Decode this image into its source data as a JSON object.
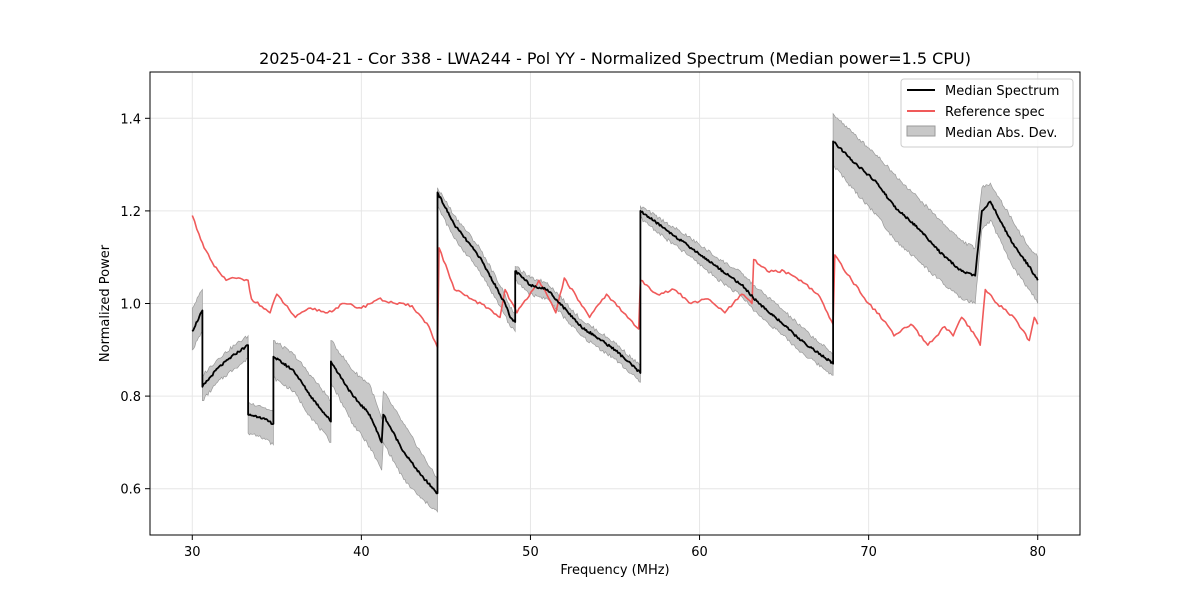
{
  "chart_data": {
    "type": "line",
    "title": "2025-04-21 - Cor 338 - LWA244 - Pol YY - Normalized Spectrum (Median power=1.5 CPU)",
    "xlabel": "Frequency (MHz)",
    "ylabel": "Normalized Power",
    "xlim": [
      27.5,
      82.5
    ],
    "ylim": [
      0.5,
      1.5
    ],
    "xticks": [
      30,
      40,
      50,
      60,
      70,
      80
    ],
    "yticks": [
      0.6,
      0.8,
      1.0,
      1.2,
      1.4
    ],
    "xtick_labels": [
      "30",
      "40",
      "50",
      "60",
      "70",
      "80"
    ],
    "ytick_labels": [
      "0.6",
      "0.8",
      "1.0",
      "1.2",
      "1.4"
    ],
    "grid": true,
    "legend_position": "top-right",
    "legend": [
      "Median Spectrum",
      "Reference spec",
      "Median Abs. Dev."
    ],
    "colors": {
      "median": "#000000",
      "reference": "#f05a5a",
      "mad_fill": "#c8c8c8",
      "mad_edge": "#9a9a9a"
    },
    "series": [
      {
        "name": "Median Spectrum",
        "x": [
          30.0,
          30.6,
          30.6,
          31.5,
          32.5,
          33.3,
          33.3,
          34.0,
          34.8,
          34.8,
          36.0,
          37.0,
          38.2,
          38.2,
          39.5,
          40.5,
          41.2,
          41.3,
          42.5,
          43.5,
          44.5,
          44.5,
          45.5,
          47.0,
          48.5,
          48.8,
          49.1,
          49.1,
          50.0,
          51.0,
          53.0,
          55.0,
          56.5,
          56.5,
          58.0,
          59.5,
          61.0,
          62.5,
          63.5,
          64.5,
          66.0,
          67.9,
          67.9,
          69.0,
          70.5,
          71.5,
          73.0,
          74.5,
          75.5,
          76.3,
          76.7,
          77.2,
          78.5,
          79.5,
          80.0
        ],
        "y": [
          0.94,
          0.985,
          0.82,
          0.86,
          0.89,
          0.91,
          0.76,
          0.755,
          0.74,
          0.885,
          0.855,
          0.8,
          0.745,
          0.875,
          0.8,
          0.76,
          0.7,
          0.76,
          0.68,
          0.63,
          0.59,
          1.24,
          1.17,
          1.1,
          1.0,
          0.97,
          0.96,
          1.07,
          1.04,
          1.03,
          0.95,
          0.9,
          0.85,
          1.2,
          1.16,
          1.12,
          1.08,
          1.04,
          1.0,
          0.97,
          0.92,
          0.87,
          1.35,
          1.31,
          1.26,
          1.21,
          1.16,
          1.1,
          1.07,
          1.06,
          1.2,
          1.22,
          1.13,
          1.08,
          1.05
        ]
      },
      {
        "name": "Reference spec",
        "x": [
          30.0,
          30.4,
          30.7,
          31.3,
          32.0,
          32.5,
          33.3,
          33.5,
          34.6,
          35.0,
          36.1,
          37.0,
          38.0,
          39.0,
          40.0,
          41.0,
          42.0,
          43.0,
          44.0,
          44.5,
          44.6,
          45.5,
          46.5,
          47.5,
          48.2,
          48.5,
          49.2,
          50.5,
          51.5,
          52.0,
          53.5,
          54.5,
          55.5,
          56.4,
          56.5,
          57.5,
          58.5,
          59.5,
          60.5,
          61.5,
          62.5,
          63.1,
          63.2,
          64.0,
          65.0,
          66.0,
          67.0,
          67.9,
          68.0,
          69.0,
          70.0,
          71.0,
          71.5,
          72.5,
          73.5,
          74.5,
          75.0,
          75.5,
          76.3,
          76.6,
          76.9,
          77.6,
          78.6,
          79.5,
          79.8,
          80.0
        ],
        "y": [
          1.19,
          1.15,
          1.12,
          1.08,
          1.05,
          1.055,
          1.05,
          1.01,
          0.98,
          1.02,
          0.97,
          0.99,
          0.98,
          1.0,
          0.99,
          1.01,
          1.0,
          0.995,
          0.95,
          0.905,
          1.12,
          1.03,
          1.01,
          0.99,
          0.97,
          1.03,
          0.98,
          1.05,
          0.98,
          1.055,
          0.97,
          1.02,
          0.98,
          0.945,
          1.05,
          1.02,
          1.03,
          1.0,
          1.01,
          0.98,
          1.02,
          1.0,
          1.095,
          1.07,
          1.07,
          1.05,
          1.02,
          0.955,
          1.105,
          1.05,
          1.0,
          0.96,
          0.93,
          0.955,
          0.91,
          0.95,
          0.93,
          0.97,
          0.93,
          0.91,
          1.03,
          1.0,
          0.97,
          0.92,
          0.97,
          0.955
        ]
      },
      {
        "name": "Median Abs. Dev.",
        "x": [
          30.0,
          30.6,
          30.6,
          31.5,
          32.5,
          33.3,
          33.3,
          34.0,
          34.8,
          34.8,
          36.0,
          37.0,
          38.2,
          38.2,
          39.5,
          40.5,
          41.2,
          41.3,
          42.5,
          43.5,
          44.5,
          44.5,
          45.5,
          47.0,
          48.5,
          48.8,
          49.1,
          49.1,
          50.0,
          51.0,
          53.0,
          55.0,
          56.5,
          56.5,
          58.0,
          59.5,
          61.0,
          62.5,
          63.5,
          64.5,
          66.0,
          67.9,
          67.9,
          69.0,
          70.5,
          71.5,
          73.0,
          74.5,
          75.5,
          76.3,
          76.7,
          77.2,
          78.5,
          79.5,
          80.0
        ],
        "upper": [
          0.99,
          1.03,
          0.845,
          0.88,
          0.91,
          0.93,
          0.785,
          0.78,
          0.765,
          0.92,
          0.89,
          0.845,
          0.79,
          0.92,
          0.855,
          0.825,
          0.75,
          0.81,
          0.74,
          0.68,
          0.62,
          1.25,
          1.19,
          1.12,
          1.02,
          0.99,
          0.98,
          1.08,
          1.055,
          1.045,
          0.965,
          0.915,
          0.865,
          1.21,
          1.175,
          1.14,
          1.1,
          1.065,
          1.03,
          1.0,
          0.95,
          0.89,
          1.41,
          1.37,
          1.32,
          1.28,
          1.225,
          1.17,
          1.135,
          1.12,
          1.25,
          1.26,
          1.18,
          1.12,
          1.1
        ],
        "lower": [
          0.9,
          0.94,
          0.79,
          0.83,
          0.86,
          0.88,
          0.72,
          0.715,
          0.695,
          0.84,
          0.81,
          0.755,
          0.7,
          0.83,
          0.74,
          0.69,
          0.64,
          0.7,
          0.62,
          0.58,
          0.55,
          1.21,
          1.14,
          1.07,
          0.975,
          0.95,
          0.94,
          1.05,
          1.02,
          1.01,
          0.93,
          0.88,
          0.83,
          1.185,
          1.14,
          1.1,
          1.055,
          1.015,
          0.975,
          0.945,
          0.895,
          0.845,
          1.3,
          1.25,
          1.19,
          1.14,
          1.09,
          1.04,
          1.01,
          1.0,
          1.16,
          1.18,
          1.08,
          1.03,
          1.0
        ]
      }
    ]
  }
}
